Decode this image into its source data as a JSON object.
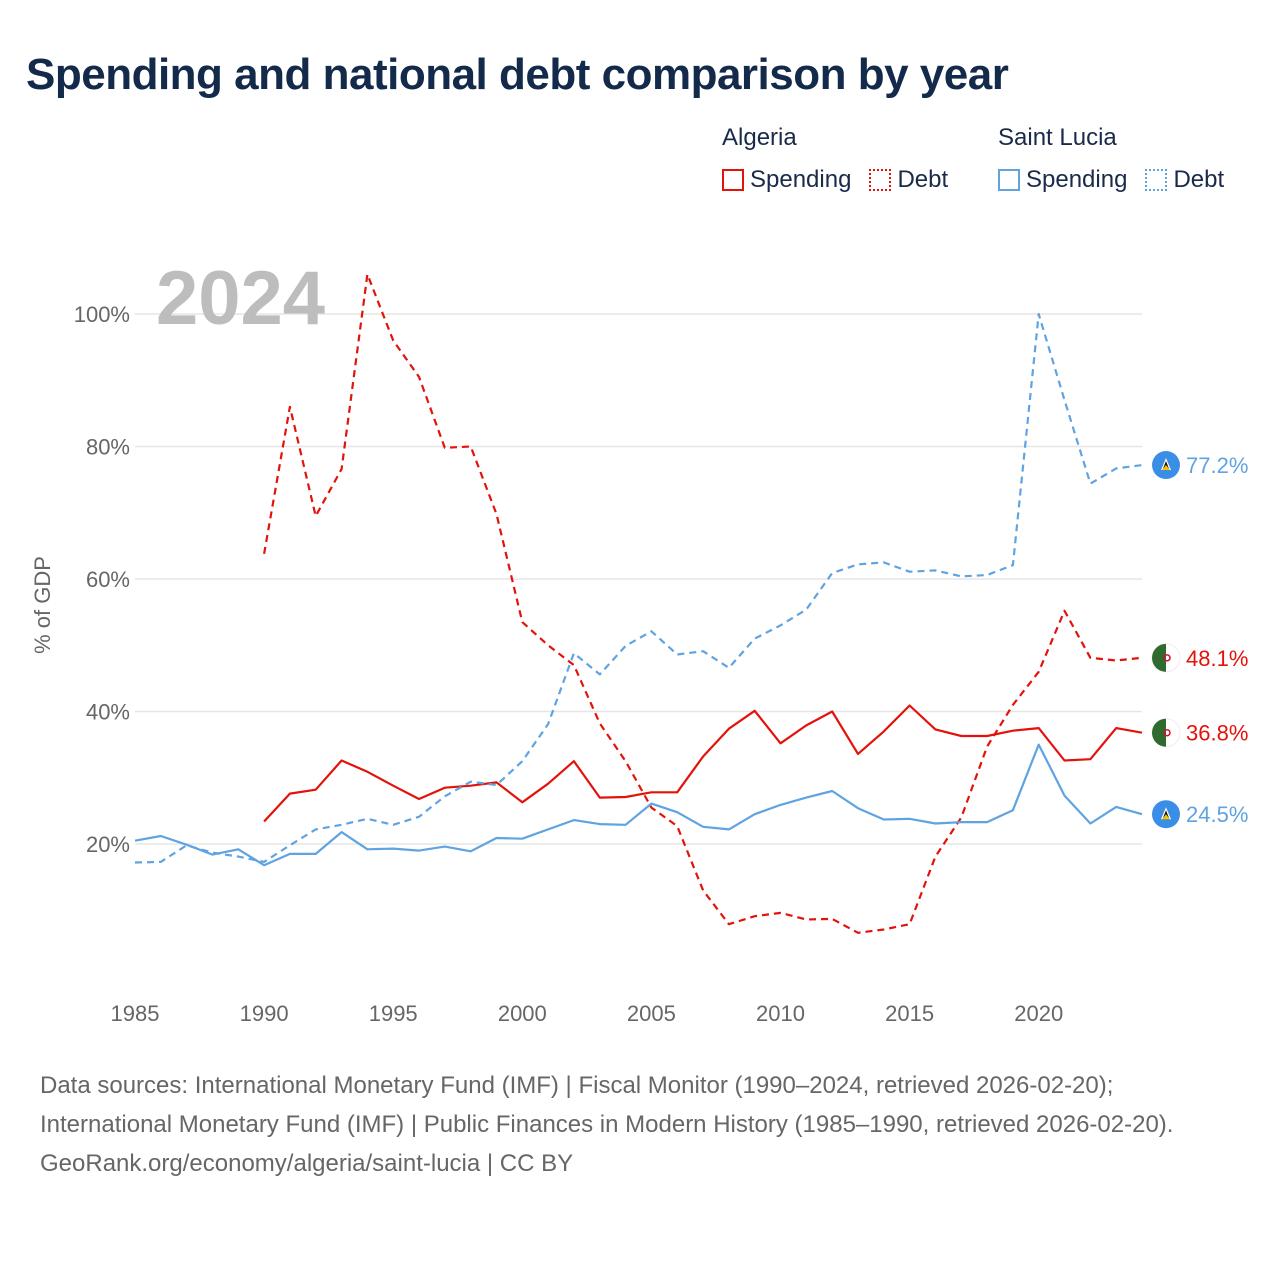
{
  "title": "Spending and national debt comparison by year",
  "legend": {
    "groups": [
      {
        "country": "Algeria",
        "items": [
          "Spending",
          "Debt"
        ]
      },
      {
        "country": "Saint Lucia",
        "items": [
          "Spending",
          "Debt"
        ]
      }
    ]
  },
  "footer": {
    "sources": "Data sources: International Monetary Fund (IMF) | Fiscal Monitor (1990–2024, retrieved 2026-02-20); International Monetary Fund (IMF) | Public Finances in Modern History (1985–1990, retrieved 2026-02-20).",
    "link": "GeoRank.org/economy/algeria/saint-lucia | CC BY"
  },
  "colors": {
    "algeria": "#e3120b",
    "saint_lucia": "#5fa3e0",
    "grid": "#e6e6e6",
    "year": "#bdbdbd"
  },
  "chart_data": {
    "type": "line",
    "year_label": "2024",
    "ylabel": "% of GDP",
    "xlim": [
      1985,
      2024
    ],
    "ylim": [
      0,
      105
    ],
    "xticks": [
      1985,
      1990,
      1995,
      2000,
      2005,
      2010,
      2015,
      2020
    ],
    "yticks": [
      20,
      40,
      60,
      80,
      100
    ],
    "ytick_labels": [
      "20%",
      "40%",
      "60%",
      "80%",
      "100%"
    ],
    "series": [
      {
        "name": "Algeria Spending",
        "country": "Algeria",
        "kind": "Spending",
        "color": "#e3120b",
        "dash": false,
        "end_label": "36.8%",
        "x": [
          1990,
          1991,
          1992,
          1993,
          1994,
          1995,
          1996,
          1997,
          1998,
          1999,
          2000,
          2001,
          2002,
          2003,
          2004,
          2005,
          2006,
          2007,
          2008,
          2009,
          2010,
          2011,
          2012,
          2013,
          2014,
          2015,
          2016,
          2017,
          2018,
          2019,
          2020,
          2021,
          2022,
          2023,
          2024
        ],
        "values": [
          23.4,
          27.6,
          28.2,
          32.6,
          30.9,
          28.8,
          26.8,
          28.5,
          28.8,
          29.3,
          26.3,
          29.1,
          32.5,
          27.0,
          27.1,
          27.8,
          27.8,
          33.2,
          37.4,
          40.1,
          35.2,
          37.9,
          40.0,
          33.6,
          37.0,
          40.9,
          37.3,
          36.3,
          36.3,
          37.1,
          37.5,
          32.6,
          32.8,
          37.5,
          36.8
        ]
      },
      {
        "name": "Algeria Debt",
        "country": "Algeria",
        "kind": "Debt",
        "color": "#e3120b",
        "dash": true,
        "end_label": "48.1%",
        "x": [
          1990,
          1991,
          1992,
          1993,
          1994,
          1995,
          1996,
          1997,
          1998,
          1999,
          2000,
          2001,
          2002,
          2003,
          2004,
          2005,
          2006,
          2007,
          2008,
          2009,
          2010,
          2011,
          2012,
          2013,
          2014,
          2015,
          2016,
          2017,
          2018,
          2019,
          2020,
          2021,
          2022,
          2023,
          2024
        ],
        "values": [
          63.8,
          86.0,
          69.5,
          76.6,
          106.0,
          96.0,
          90.5,
          79.8,
          80.0,
          69.8,
          53.5,
          50.0,
          47.0,
          38.2,
          32.5,
          25.5,
          22.7,
          13.0,
          7.9,
          9.1,
          9.6,
          8.6,
          8.7,
          6.6,
          7.1,
          7.9,
          18.1,
          24.0,
          34.7,
          41.0,
          46.0,
          55.2,
          48.1,
          47.7,
          48.1
        ]
      },
      {
        "name": "Saint Lucia Spending",
        "country": "Saint Lucia",
        "kind": "Spending",
        "color": "#5fa3e0",
        "dash": false,
        "end_label": "24.5%",
        "x": [
          1985,
          1986,
          1987,
          1988,
          1989,
          1990,
          1991,
          1992,
          1993,
          1994,
          1995,
          1996,
          1997,
          1998,
          1999,
          2000,
          2001,
          2002,
          2003,
          2004,
          2005,
          2006,
          2007,
          2008,
          2009,
          2010,
          2011,
          2012,
          2013,
          2014,
          2015,
          2016,
          2017,
          2018,
          2019,
          2020,
          2021,
          2022,
          2023,
          2024
        ],
        "values": [
          20.5,
          21.2,
          19.9,
          18.4,
          19.2,
          16.8,
          18.5,
          18.5,
          21.8,
          19.2,
          19.3,
          19.0,
          19.6,
          18.9,
          20.9,
          20.8,
          22.2,
          23.6,
          23.0,
          22.9,
          26.1,
          24.8,
          22.6,
          22.2,
          24.5,
          25.9,
          27.0,
          28.0,
          25.4,
          23.7,
          23.8,
          23.1,
          23.3,
          23.3,
          25.1,
          35.0,
          27.3,
          23.1,
          25.6,
          24.5
        ]
      },
      {
        "name": "Saint Lucia Debt",
        "country": "Saint Lucia",
        "kind": "Debt",
        "color": "#5fa3e0",
        "dash": true,
        "end_label": "77.2%",
        "x": [
          1985,
          1986,
          1987,
          1988,
          1989,
          1990,
          1991,
          1992,
          1993,
          1994,
          1995,
          1996,
          1997,
          1998,
          1999,
          2000,
          2001,
          2002,
          2003,
          2004,
          2005,
          2006,
          2007,
          2008,
          2009,
          2010,
          2011,
          2012,
          2013,
          2014,
          2015,
          2016,
          2017,
          2018,
          2019,
          2020,
          2021,
          2022,
          2023,
          2024
        ],
        "values": [
          17.2,
          17.3,
          19.8,
          18.7,
          18.1,
          17.3,
          19.8,
          22.2,
          22.9,
          23.8,
          22.9,
          24.1,
          27.2,
          29.4,
          28.9,
          32.5,
          38.1,
          48.8,
          45.6,
          49.9,
          52.1,
          48.6,
          49.1,
          46.6,
          51.0,
          53.0,
          55.4,
          60.9,
          62.2,
          62.5,
          61.1,
          61.3,
          60.4,
          60.6,
          62.1,
          100.0,
          87.0,
          74.4,
          76.7,
          77.2
        ]
      }
    ]
  }
}
